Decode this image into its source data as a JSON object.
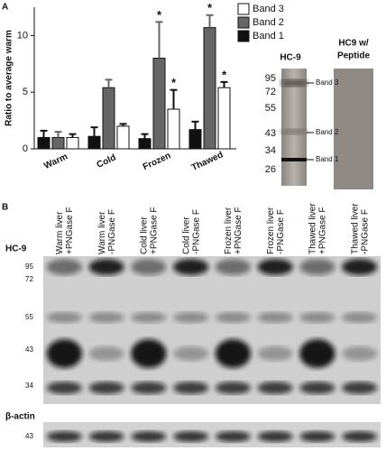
{
  "panel_a_label": "A",
  "panel_b_label": "B",
  "chart_data": {
    "type": "bar",
    "ylabel": "Ratio to average warm",
    "categories": [
      "Warm",
      "Cold",
      "Frozen",
      "Thawed"
    ],
    "series": [
      {
        "name": "Band 1",
        "color": "#111111",
        "values": [
          1.0,
          1.1,
          0.9,
          1.7
        ],
        "errors": [
          0.6,
          0.8,
          0.4,
          0.7
        ],
        "markers": [
          null,
          null,
          null,
          null
        ]
      },
      {
        "name": "Band 2",
        "color": "#666666",
        "values": [
          1.0,
          5.4,
          8.0,
          10.7
        ],
        "errors": [
          0.5,
          0.7,
          3.2,
          1.1
        ],
        "markers": [
          null,
          null,
          "*",
          "*"
        ]
      },
      {
        "name": "Band 3",
        "color": "#ffffff",
        "values": [
          1.0,
          2.0,
          3.5,
          5.4
        ],
        "errors": [
          0.3,
          0.2,
          1.7,
          0.5
        ],
        "markers": [
          null,
          null,
          "*",
          "*"
        ]
      }
    ],
    "ylim": [
      0,
      12.5
    ],
    "yticks": [
      0,
      5,
      10
    ]
  },
  "blot_a": {
    "title": "HC-9",
    "mw": [
      "95",
      "72",
      "55",
      "43",
      "34",
      "26"
    ],
    "bands": [
      "Band 3",
      "Band 2",
      "Band 1"
    ]
  },
  "blot_peptide": {
    "title": [
      "HC9 w/",
      "Peptide"
    ]
  },
  "blot_b": {
    "lanes": [
      [
        "Warm liver",
        "+PNGase F"
      ],
      [
        "Warm liver",
        "-PNGase F"
      ],
      [
        "Cold liver",
        "+PNGase F"
      ],
      [
        "Cold liver",
        "-PNGase F"
      ],
      [
        "Frozen liver",
        "+PNGase F"
      ],
      [
        "Frozen liver",
        "-PNGase F"
      ],
      [
        "Thawed liver",
        "+PNGase F"
      ],
      [
        "Thawed liver",
        "-PNGase F"
      ]
    ],
    "label": "HC-9",
    "mw": [
      "95",
      "72",
      "55",
      "43",
      "34"
    ],
    "actin_label": "β-actin",
    "actin_mw": "43"
  }
}
